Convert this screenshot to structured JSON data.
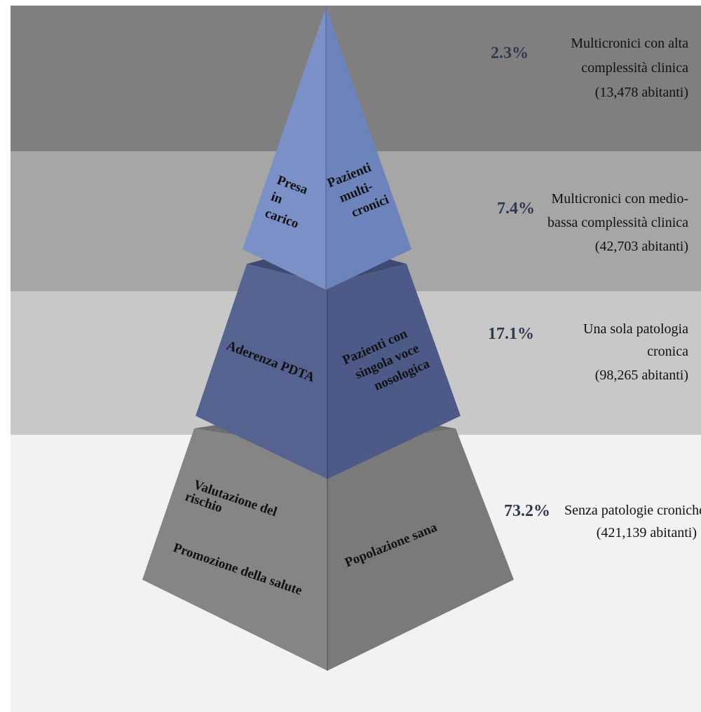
{
  "colors": {
    "band_1": "#7f7f7f",
    "band_2": "#a6a6a6",
    "band_3": "#c8c8c8",
    "band_4": "#f2f2f2",
    "tier_1_left": "#7b90c6",
    "tier_1_right": "#6d83bb",
    "tier_2_left": "#566390",
    "tier_2_right": "#4d5a87",
    "tier_3_left": "#858585",
    "tier_3_right": "#7a7a7a"
  },
  "tiers": [
    {
      "id": "top",
      "left_lines": [
        "Presa",
        "in",
        "carico"
      ],
      "right_lines": [
        "Pazienti",
        "multi-",
        "cronici"
      ]
    },
    {
      "id": "middle",
      "left_lines": [
        "Aderenza  PDTA"
      ],
      "right_lines": [
        "Pazienti con",
        "singola voce",
        "nosologica"
      ]
    },
    {
      "id": "base",
      "left_lines_a": [
        "Valutazione del",
        "rischio"
      ],
      "left_lines_b": [
        "Promozione della salute"
      ],
      "right_lines": [
        "Popolazione sana"
      ]
    }
  ],
  "rows": [
    {
      "percent": "2.3%",
      "description": [
        "Multicronici con alta",
        "complessità clinica",
        "(13,478 abitanti)"
      ]
    },
    {
      "percent": "7.4%",
      "description": [
        "Multicronici con medio-",
        "bassa complessità clinica",
        "(42,703  abitanti)"
      ]
    },
    {
      "percent": "17.1%",
      "description": [
        "Una sola patologia",
        "cronica",
        "(98,265  abitanti)"
      ]
    },
    {
      "percent": "73.2%",
      "description": [
        "Senza patologie croniche",
        "(421,139 abitanti)"
      ]
    }
  ]
}
